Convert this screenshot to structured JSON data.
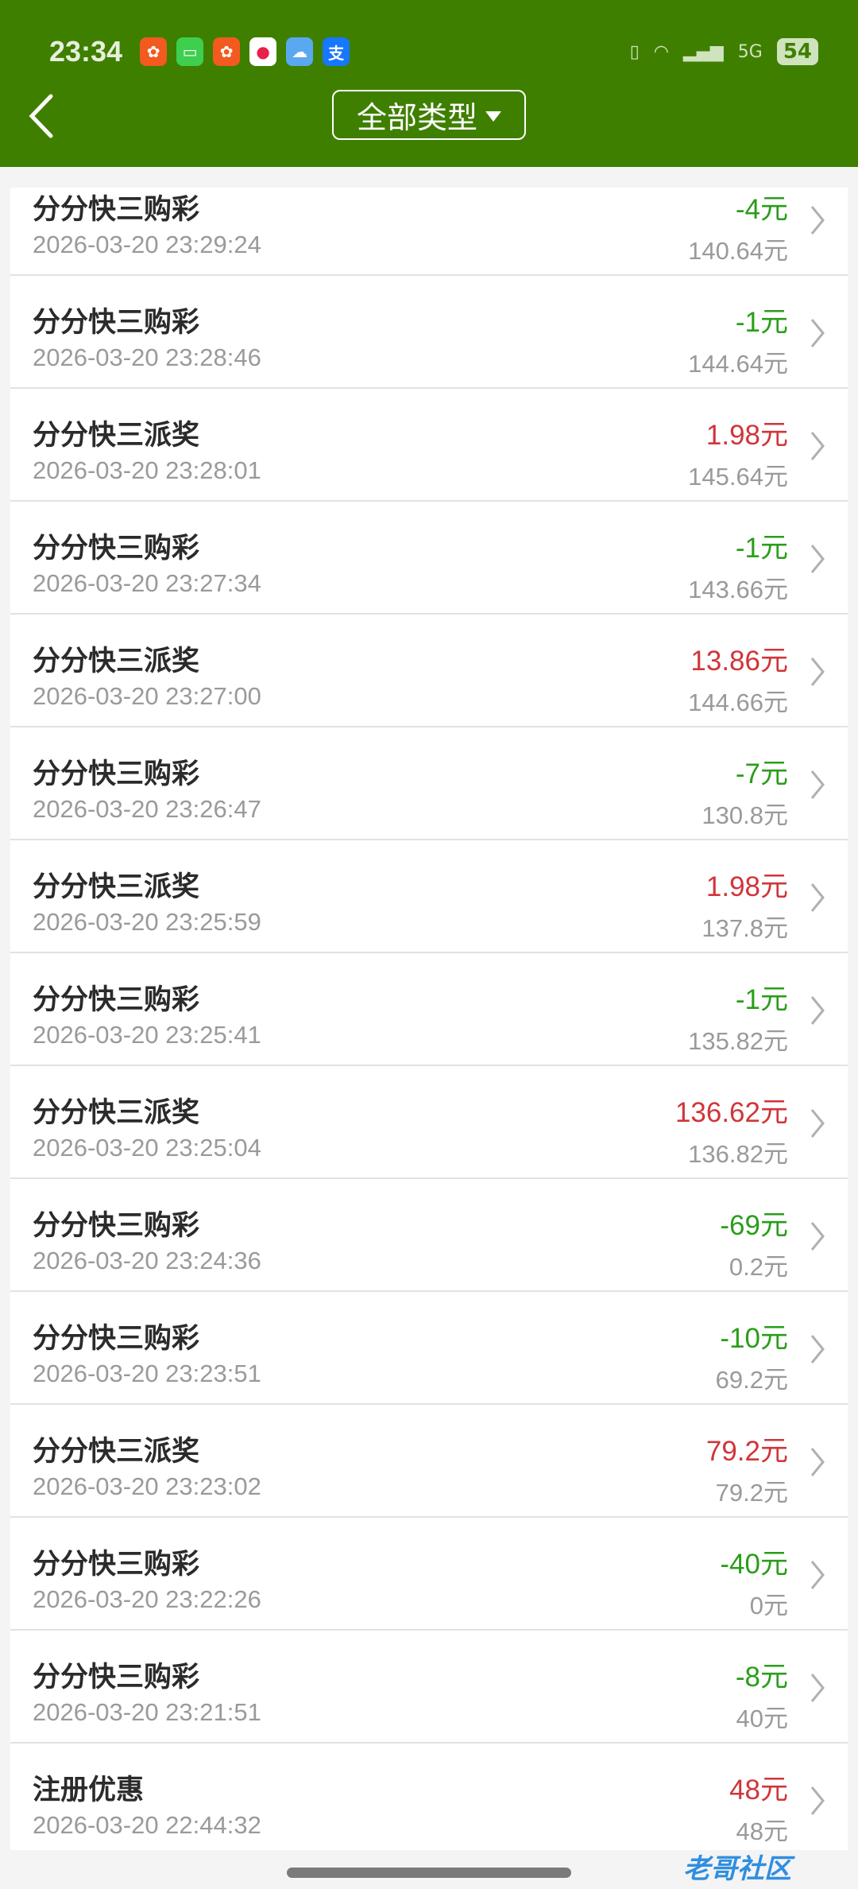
{
  "status_bar": {
    "time": "23:34",
    "battery": "54",
    "network": "5G"
  },
  "header": {
    "back_icon": "chevron-left-icon",
    "filter_label": "全部类型",
    "colors": {
      "header_bg": "#3f7f00",
      "expense": "#2a9d1a",
      "income": "#d0353a"
    }
  },
  "rows": [
    {
      "title": "分分快三购彩",
      "date": "2026-03-20 23:29:24",
      "amount": "-4元",
      "balance": "140.64元",
      "type": "expense"
    },
    {
      "title": "分分快三购彩",
      "date": "2026-03-20 23:28:46",
      "amount": "-1元",
      "balance": "144.64元",
      "type": "expense"
    },
    {
      "title": "分分快三派奖",
      "date": "2026-03-20 23:28:01",
      "amount": "1.98元",
      "balance": "145.64元",
      "type": "income"
    },
    {
      "title": "分分快三购彩",
      "date": "2026-03-20 23:27:34",
      "amount": "-1元",
      "balance": "143.66元",
      "type": "expense"
    },
    {
      "title": "分分快三派奖",
      "date": "2026-03-20 23:27:00",
      "amount": "13.86元",
      "balance": "144.66元",
      "type": "income"
    },
    {
      "title": "分分快三购彩",
      "date": "2026-03-20 23:26:47",
      "amount": "-7元",
      "balance": "130.8元",
      "type": "expense"
    },
    {
      "title": "分分快三派奖",
      "date": "2026-03-20 23:25:59",
      "amount": "1.98元",
      "balance": "137.8元",
      "type": "income"
    },
    {
      "title": "分分快三购彩",
      "date": "2026-03-20 23:25:41",
      "amount": "-1元",
      "balance": "135.82元",
      "type": "expense"
    },
    {
      "title": "分分快三派奖",
      "date": "2026-03-20 23:25:04",
      "amount": "136.62元",
      "balance": "136.82元",
      "type": "income"
    },
    {
      "title": "分分快三购彩",
      "date": "2026-03-20 23:24:36",
      "amount": "-69元",
      "balance": "0.2元",
      "type": "expense"
    },
    {
      "title": "分分快三购彩",
      "date": "2026-03-20 23:23:51",
      "amount": "-10元",
      "balance": "69.2元",
      "type": "expense"
    },
    {
      "title": "分分快三派奖",
      "date": "2026-03-20 23:23:02",
      "amount": "79.2元",
      "balance": "79.2元",
      "type": "income"
    },
    {
      "title": "分分快三购彩",
      "date": "2026-03-20 23:22:26",
      "amount": "-40元",
      "balance": "0元",
      "type": "expense"
    },
    {
      "title": "分分快三购彩",
      "date": "2026-03-20 23:21:51",
      "amount": "-8元",
      "balance": "40元",
      "type": "expense"
    },
    {
      "title": "注册优惠",
      "date": "2026-03-20 22:44:32",
      "amount": "48元",
      "balance": "48元",
      "type": "income"
    }
  ],
  "watermark": "老哥社区"
}
